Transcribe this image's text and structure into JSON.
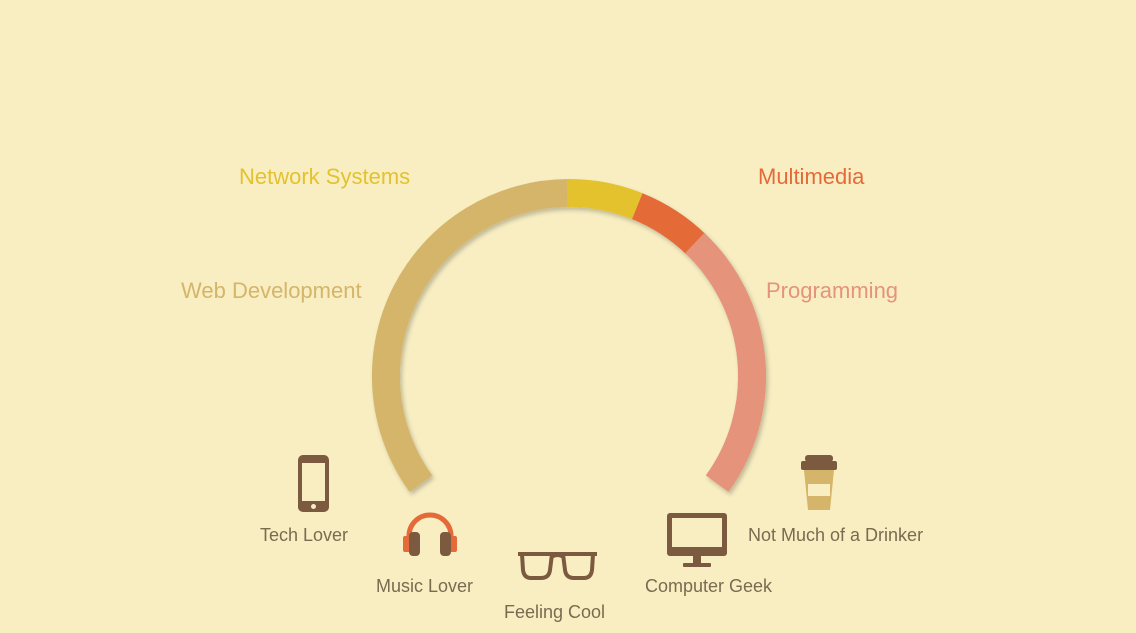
{
  "skills": [
    {
      "key": "network",
      "label": "Network Systems",
      "color": "#E3C22E"
    },
    {
      "key": "multimedia",
      "label": "Multimedia",
      "color": "#E46A39"
    },
    {
      "key": "web",
      "label": "Web Development",
      "color": "#D4B56A"
    },
    {
      "key": "programming",
      "label": "Programming",
      "color": "#E5937A"
    }
  ],
  "traits": [
    {
      "key": "tech",
      "label": "Tech Lover",
      "icon": "smartphone-icon"
    },
    {
      "key": "music",
      "label": "Music Lover",
      "icon": "headphones-icon"
    },
    {
      "key": "cool",
      "label": "Feeling Cool",
      "icon": "glasses-icon"
    },
    {
      "key": "computer",
      "label": "Computer Geek",
      "icon": "monitor-icon"
    },
    {
      "key": "drinker",
      "label": "Not Much of a Drinker",
      "icon": "coffee-cup-icon"
    }
  ],
  "colors": {
    "background": "#F8EEC2",
    "icon_brown": "#7B5A40",
    "text_brown": "#7B6A50"
  }
}
